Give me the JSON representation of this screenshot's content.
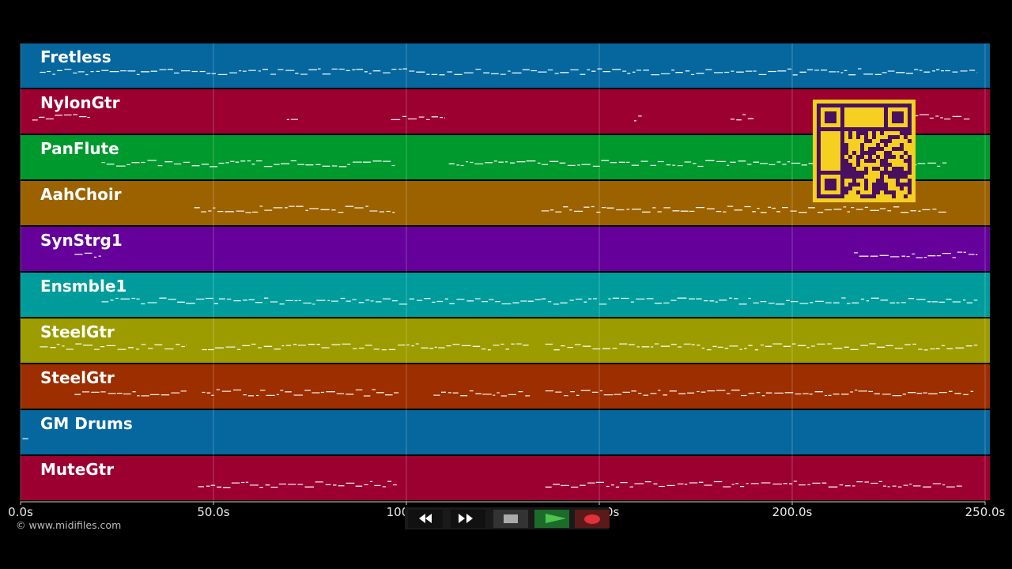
{
  "chart_data": {
    "type": "timeline",
    "xlim": [
      0,
      250
    ],
    "xticks": [
      {
        "value": 0,
        "label": "0.0s"
      },
      {
        "value": 50,
        "label": "50.0s"
      },
      {
        "value": 100,
        "label": "100.0s"
      },
      {
        "value": 150,
        "label": "150.0s"
      },
      {
        "value": 200,
        "label": "200.0s"
      },
      {
        "value": 250,
        "label": "250.0s"
      }
    ],
    "grid": true,
    "tracks": [
      {
        "name": "Fretless",
        "color": "#05679e",
        "spans": [
          [
            5,
            248
          ]
        ]
      },
      {
        "name": "NylonGtr",
        "color": "#9b0031",
        "spans": [
          [
            3,
            18
          ],
          [
            69,
            72
          ],
          [
            96,
            110
          ],
          [
            159,
            161
          ],
          [
            184,
            190
          ],
          [
            232,
            246
          ]
        ]
      },
      {
        "name": "PanFlute",
        "color": "#00992e",
        "spans": [
          [
            21,
            97
          ],
          [
            111,
            240
          ]
        ]
      },
      {
        "name": "AahChoir",
        "color": "#9c6200",
        "spans": [
          [
            45,
            97
          ],
          [
            135,
            240
          ]
        ]
      },
      {
        "name": "SynStrg1",
        "color": "#65009a",
        "spans": [
          [
            14,
            21
          ],
          [
            216,
            248
          ]
        ]
      },
      {
        "name": "Ensmble1",
        "color": "#009c9c",
        "spans": [
          [
            21,
            135
          ],
          [
            135,
            248
          ]
        ]
      },
      {
        "name": "SteelGtr",
        "color": "#9c9c00",
        "spans": [
          [
            5,
            43
          ],
          [
            47,
            132
          ],
          [
            136,
            248
          ]
        ]
      },
      {
        "name": "SteelGtr",
        "color": "#9c2e00",
        "spans": [
          [
            14,
            43
          ],
          [
            47,
            98
          ],
          [
            107,
            132
          ],
          [
            136,
            247
          ]
        ]
      },
      {
        "name": "GM Drums",
        "color": "#05679e",
        "spans": [
          [
            0.5,
            2
          ]
        ]
      },
      {
        "name": "MuteGtr",
        "color": "#9b0031",
        "spans": [
          [
            46,
            98
          ],
          [
            136,
            244
          ]
        ]
      }
    ]
  },
  "footer": {
    "credit": "© www.midifiles.com"
  }
}
